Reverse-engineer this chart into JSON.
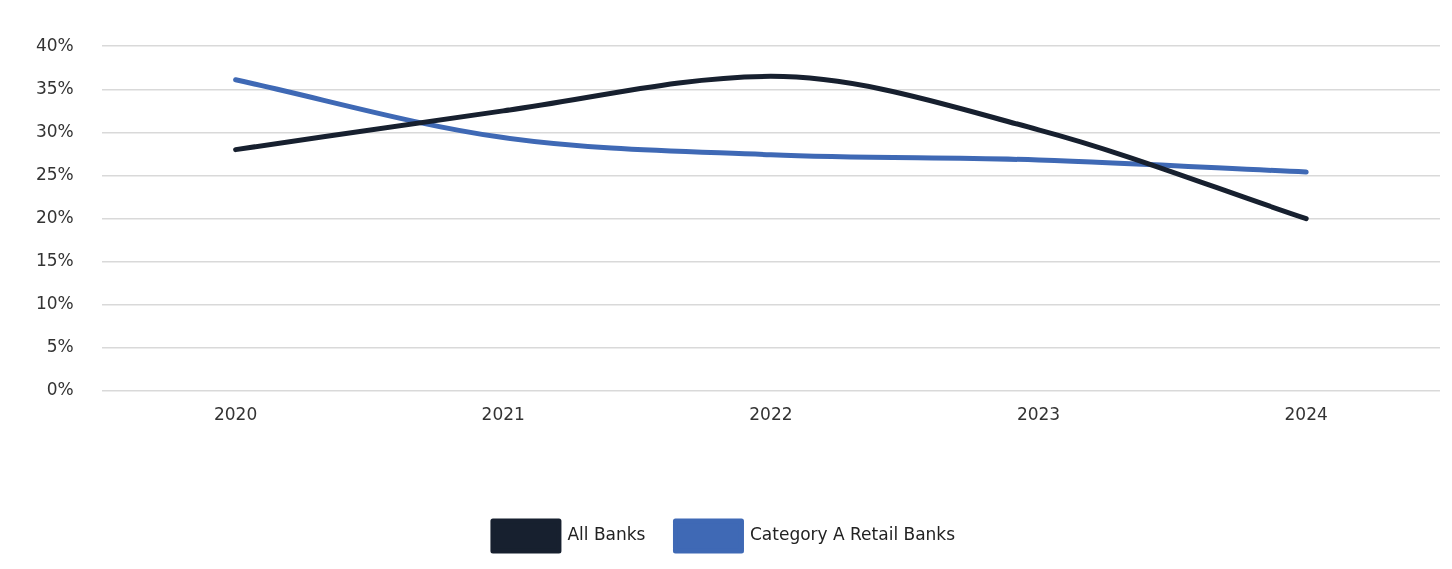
{
  "chart_data": {
    "type": "line",
    "categories": [
      "2020",
      "2021",
      "2022",
      "2023",
      "2024"
    ],
    "series": [
      {
        "name": "All Banks",
        "color": "#17202f",
        "values": [
          28,
          32.5,
          36.5,
          30.3,
          20
        ]
      },
      {
        "name": "Category A Retail Banks",
        "color": "#3f69b5",
        "values": [
          36.1,
          29.4,
          27.4,
          26.8,
          25.4
        ]
      }
    ],
    "ylim": [
      0,
      40
    ],
    "yticks": [
      {
        "value": 0,
        "label": "0%"
      },
      {
        "value": 5,
        "label": "5%"
      },
      {
        "value": 10,
        "label": "10%"
      },
      {
        "value": 15,
        "label": "15%"
      },
      {
        "value": 20,
        "label": "20%"
      },
      {
        "value": 25,
        "label": "25%"
      },
      {
        "value": 30,
        "label": "30%"
      },
      {
        "value": 35,
        "label": "35%"
      },
      {
        "value": 40,
        "label": "40%"
      }
    ],
    "grid": "y",
    "legend": "bottom"
  }
}
